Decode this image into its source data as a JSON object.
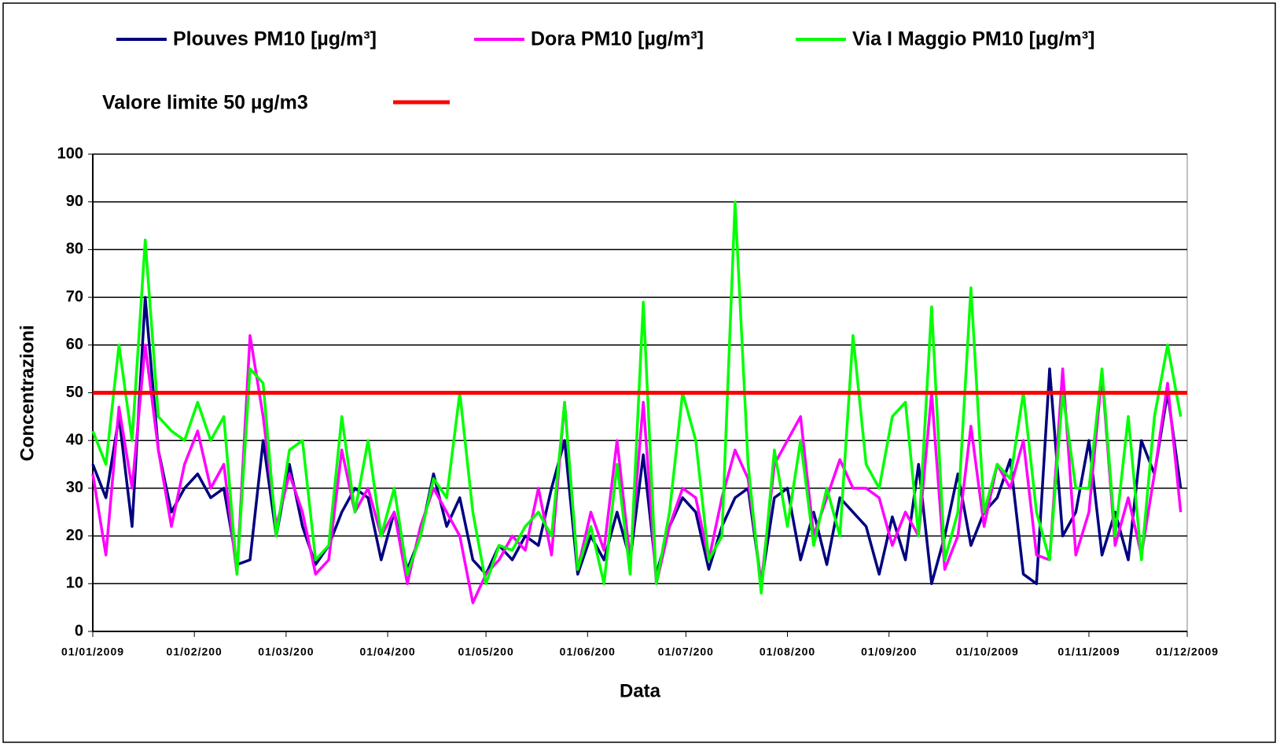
{
  "chart_data": {
    "type": "line",
    "xlabel": "Data",
    "ylabel": "Concentrazioni",
    "ylim": [
      0,
      100
    ],
    "yticks": [
      0,
      10,
      20,
      30,
      40,
      50,
      60,
      70,
      80,
      90,
      100
    ],
    "grid": true,
    "xlim": [
      "2009-01-01",
      "2009-12-01"
    ],
    "xticks": [
      {
        "value": "2009-01-01",
        "label": "01/01/2009"
      },
      {
        "value": "2009-02-01",
        "label": "01/02/200"
      },
      {
        "value": "2009-03-01",
        "label": "01/03/200"
      },
      {
        "value": "2009-04-01",
        "label": "01/04/200"
      },
      {
        "value": "2009-05-01",
        "label": "01/05/200"
      },
      {
        "value": "2009-06-01",
        "label": "01/06/200"
      },
      {
        "value": "2009-07-01",
        "label": "01/07/200"
      },
      {
        "value": "2009-08-01",
        "label": "01/08/200"
      },
      {
        "value": "2009-09-01",
        "label": "01/09/200"
      },
      {
        "value": "2009-10-01",
        "label": "01/10/2009"
      },
      {
        "value": "2009-11-01",
        "label": "01/11/2009"
      },
      {
        "value": "2009-12-01",
        "label": "01/12/2009"
      }
    ],
    "x": [
      "2009-01-01",
      "2009-01-05",
      "2009-01-09",
      "2009-01-13",
      "2009-01-17",
      "2009-01-21",
      "2009-01-25",
      "2009-01-29",
      "2009-02-02",
      "2009-02-06",
      "2009-02-10",
      "2009-02-14",
      "2009-02-18",
      "2009-02-22",
      "2009-02-26",
      "2009-03-02",
      "2009-03-06",
      "2009-03-10",
      "2009-03-14",
      "2009-03-18",
      "2009-03-22",
      "2009-03-26",
      "2009-03-30",
      "2009-04-03",
      "2009-04-07",
      "2009-04-11",
      "2009-04-15",
      "2009-04-19",
      "2009-04-23",
      "2009-04-27",
      "2009-05-01",
      "2009-05-05",
      "2009-05-09",
      "2009-05-13",
      "2009-05-17",
      "2009-05-21",
      "2009-05-25",
      "2009-05-29",
      "2009-06-02",
      "2009-06-06",
      "2009-06-10",
      "2009-06-14",
      "2009-06-18",
      "2009-06-22",
      "2009-06-26",
      "2009-06-30",
      "2009-07-04",
      "2009-07-08",
      "2009-07-12",
      "2009-07-16",
      "2009-07-20",
      "2009-07-24",
      "2009-07-28",
      "2009-08-01",
      "2009-08-05",
      "2009-08-09",
      "2009-08-13",
      "2009-08-17",
      "2009-08-21",
      "2009-08-25",
      "2009-08-29",
      "2009-09-02",
      "2009-09-06",
      "2009-09-10",
      "2009-09-14",
      "2009-09-18",
      "2009-09-22",
      "2009-09-26",
      "2009-09-30",
      "2009-10-04",
      "2009-10-08",
      "2009-10-12",
      "2009-10-16",
      "2009-10-20",
      "2009-10-24",
      "2009-10-28",
      "2009-11-01",
      "2009-11-05",
      "2009-11-09",
      "2009-11-13",
      "2009-11-17",
      "2009-11-21",
      "2009-11-25",
      "2009-11-29"
    ],
    "series": [
      {
        "name": "Plouves PM10 [µg/m³]",
        "color": "#000080",
        "values": [
          35,
          28,
          45,
          22,
          70,
          38,
          25,
          30,
          33,
          28,
          30,
          14,
          15,
          40,
          20,
          35,
          22,
          14,
          18,
          25,
          30,
          28,
          15,
          25,
          13,
          20,
          33,
          22,
          28,
          15,
          12,
          18,
          15,
          20,
          18,
          30,
          40,
          12,
          20,
          15,
          25,
          15,
          37,
          12,
          22,
          28,
          25,
          13,
          22,
          28,
          30,
          10,
          28,
          30,
          15,
          25,
          14,
          28,
          25,
          22,
          12,
          24,
          15,
          35,
          10,
          20,
          33,
          18,
          25,
          28,
          36,
          12,
          10,
          55,
          20,
          25,
          40,
          16,
          25,
          15,
          40,
          33,
          50,
          30
        ]
      },
      {
        "name": "Dora PM10 [µg/m³]",
        "color": "#ff00ff",
        "values": [
          33,
          16,
          47,
          30,
          60,
          38,
          22,
          35,
          42,
          30,
          35,
          12,
          62,
          45,
          22,
          33,
          25,
          12,
          15,
          38,
          25,
          30,
          20,
          25,
          10,
          22,
          30,
          25,
          20,
          6,
          12,
          15,
          20,
          17,
          30,
          16,
          48,
          13,
          25,
          17,
          40,
          15,
          48,
          10,
          22,
          30,
          28,
          15,
          28,
          38,
          32,
          10,
          35,
          40,
          45,
          20,
          28,
          36,
          30,
          30,
          28,
          18,
          25,
          20,
          50,
          13,
          20,
          43,
          22,
          35,
          30,
          40,
          16,
          15,
          55,
          16,
          25,
          54,
          18,
          28,
          16,
          33,
          52,
          25
        ]
      },
      {
        "name": "Via I Maggio PM10 [µg/m³]",
        "color": "#00ff00",
        "values": [
          42,
          35,
          60,
          40,
          82,
          45,
          42,
          40,
          48,
          40,
          45,
          12,
          55,
          52,
          20,
          38,
          40,
          15,
          18,
          45,
          25,
          40,
          20,
          30,
          12,
          20,
          32,
          28,
          50,
          25,
          10,
          18,
          17,
          22,
          25,
          20,
          48,
          13,
          22,
          10,
          35,
          12,
          69,
          10,
          25,
          50,
          40,
          15,
          20,
          90,
          35,
          8,
          38,
          22,
          40,
          18,
          30,
          20,
          62,
          35,
          30,
          45,
          48,
          20,
          68,
          15,
          25,
          72,
          25,
          35,
          32,
          50,
          25,
          15,
          50,
          30,
          30,
          55,
          20,
          45,
          15,
          45,
          60,
          45
        ]
      }
    ],
    "limit": {
      "name": "Valore limite 50 µg/m3",
      "value": 50,
      "color": "#ff0000"
    }
  }
}
